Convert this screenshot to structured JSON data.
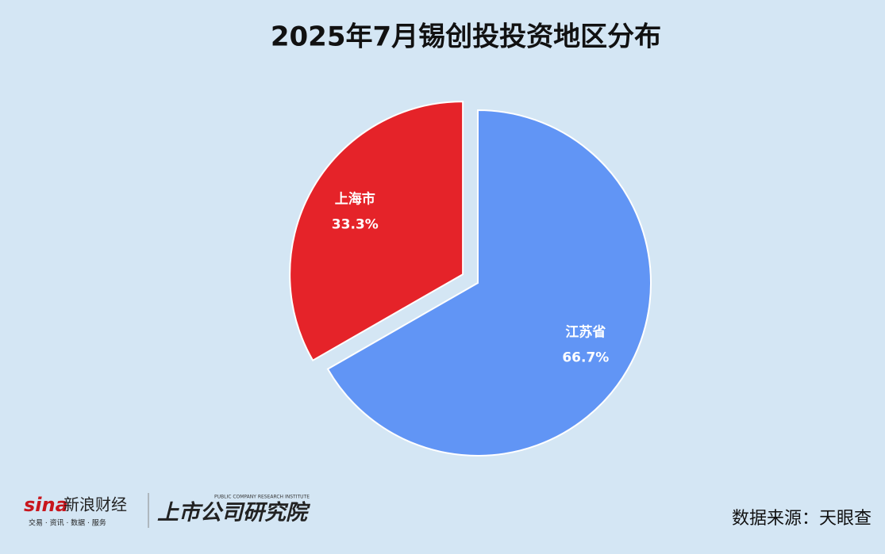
{
  "chart_data": {
    "type": "pie",
    "title": "2025年7月锡创投投资地区分布",
    "categories": [
      "江苏省",
      "上海市"
    ],
    "values": [
      66.7,
      33.3
    ],
    "value_labels": [
      "66.7%",
      "33.3%"
    ],
    "colors": [
      "#6195f5",
      "#e52329"
    ],
    "explode": [
      0,
      0.1
    ]
  },
  "footer": {
    "brand": "sina",
    "brand_name": "新浪财经",
    "brand_tagline": "交易 · 资讯 · 数据 · 服务",
    "institute_en": "PUBLIC COMPANY RESEARCH INSTITUTE",
    "institute": "上市公司研究院",
    "source": "数据来源：天眼查"
  }
}
